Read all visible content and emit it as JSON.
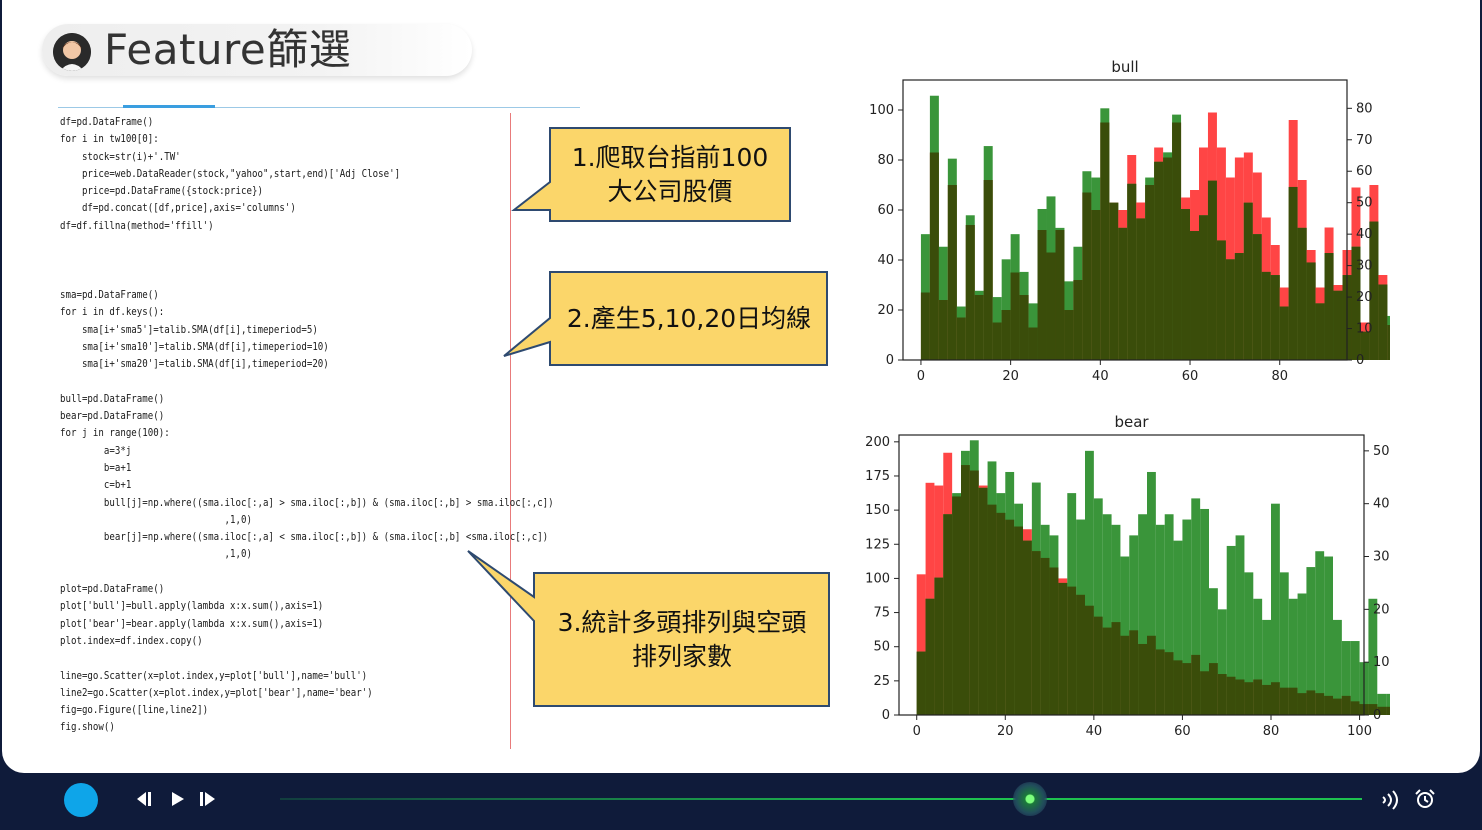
{
  "title": "Feature篩選",
  "code_lines": [
    "df=pd.DataFrame()",
    "for i in tw100[0]:",
    "    stock=str(i)+'.TW'",
    "    price=web.DataReader(stock,\"yahoo\",start,end)['Adj Close']",
    "    price=pd.DataFrame({stock:price})",
    "    df=pd.concat([df,price],axis='columns')",
    "df=df.fillna(method='ffill')",
    "",
    "",
    "",
    "sma=pd.DataFrame()",
    "for i in df.keys():",
    "    sma[i+'sma5']=talib.SMA(df[i],timeperiod=5)",
    "    sma[i+'sma10']=talib.SMA(df[i],timeperiod=10)",
    "    sma[i+'sma20']=talib.SMA(df[i],timeperiod=20)",
    "",
    "bull=pd.DataFrame()",
    "bear=pd.DataFrame()",
    "for j in range(100):",
    "        a=3*j",
    "        b=a+1",
    "        c=b+1",
    "        bull[j]=np.where((sma.iloc[:,a] > sma.iloc[:,b]) & (sma.iloc[:,b] > sma.iloc[:,c])",
    "                              ,1,0)",
    "        bear[j]=np.where((sma.iloc[:,a] < sma.iloc[:,b]) & (sma.iloc[:,b] <sma.iloc[:,c])",
    "                              ,1,0)",
    "",
    "plot=pd.DataFrame()",
    "plot['bull']=bull.apply(lambda x:x.sum(),axis=1)",
    "plot['bear']=bear.apply(lambda x:x.sum(),axis=1)",
    "plot.index=df.index.copy()",
    "",
    "line=go.Scatter(x=plot.index,y=plot['bull'],name='bull')",
    "line2=go.Scatter(x=plot.index,y=plot['bear'],name='bear')",
    "fig=go.Figure([line,line2])",
    "fig.show()"
  ],
  "callouts": [
    {
      "line1": "1.爬取台指前100",
      "line2": "大公司股價"
    },
    {
      "line1": "2.產生5,10,20日均線"
    },
    {
      "line1": "3.統計多頭排列與空頭",
      "line2": "排列家數"
    }
  ],
  "colors": {
    "red": "#ff3b3b",
    "green": "#2f8f2f",
    "overlap": "#3a4d0a",
    "callout_fill": "#fbd66a",
    "callout_border": "#2e4a70",
    "player_bg": "#0f1b3a"
  },
  "chart_data": [
    {
      "type": "bar",
      "title": "bull",
      "x_ticks": [
        "0",
        "20",
        "40",
        "60",
        "80"
      ],
      "xlim": [
        -4,
        95
      ],
      "bin_start": 0,
      "bin_width": 2,
      "left_axis_ticks": [
        "0",
        "20",
        "40",
        "60",
        "80",
        "100"
      ],
      "left_ylim": [
        0,
        112
      ],
      "right_axis_ticks": [
        "0",
        "10",
        "20",
        "30",
        "40",
        "50",
        "60",
        "70",
        "80"
      ],
      "right_ylim": [
        0,
        89
      ],
      "series": [
        {
          "name": "",
          "color": "red",
          "axis": "left",
          "values": [
            27,
            83,
            24,
            70,
            17,
            54,
            26,
            72,
            15,
            20,
            35,
            26,
            13,
            52,
            43,
            52,
            20,
            32,
            67,
            60,
            95,
            63,
            60,
            82,
            63,
            70,
            85,
            81,
            95,
            65,
            68,
            85,
            99,
            85,
            73,
            81,
            83,
            75,
            57,
            46,
            29,
            96,
            72,
            44,
            29,
            53,
            30,
            44,
            69,
            15,
            70,
            34,
            14,
            13,
            46,
            57,
            45,
            48,
            33,
            48,
            38,
            11,
            18,
            10,
            10,
            14,
            48,
            23,
            18,
            8,
            42,
            12,
            15,
            10,
            11,
            15,
            28,
            21,
            5,
            8,
            7,
            2,
            6,
            4,
            9,
            3,
            7,
            1,
            6,
            5
          ]
        },
        {
          "name": "",
          "color": "green",
          "axis": "right",
          "values": [
            40,
            84,
            36,
            64,
            17,
            46,
            22,
            68,
            20,
            32,
            40,
            28,
            18,
            48,
            52,
            42,
            25,
            36,
            60,
            58,
            80,
            50,
            42,
            56,
            45,
            58,
            63,
            66,
            78,
            48,
            41,
            46,
            57,
            38,
            32,
            34,
            50,
            40,
            28,
            27,
            17,
            55,
            42,
            31,
            18,
            34,
            22,
            27,
            36,
            9,
            44,
            24,
            14,
            9,
            24,
            36,
            27,
            20,
            15,
            28,
            19,
            7,
            9,
            5,
            5,
            7,
            20,
            13,
            10,
            4,
            21,
            6,
            5,
            4,
            4,
            6,
            14,
            11,
            2,
            3,
            3,
            1,
            2,
            1,
            3,
            1,
            2,
            0,
            2,
            1
          ]
        }
      ]
    },
    {
      "type": "bar",
      "title": "bear",
      "x_ticks": [
        "0",
        "20",
        "40",
        "60",
        "80",
        "100"
      ],
      "xlim": [
        -4,
        101
      ],
      "bin_start": 0,
      "bin_width": 2,
      "left_axis_ticks": [
        "0",
        "25",
        "50",
        "75",
        "100",
        "125",
        "150",
        "175",
        "200"
      ],
      "left_ylim": [
        0,
        205
      ],
      "right_axis_ticks": [
        "0",
        "10",
        "20",
        "30",
        "40",
        "50"
      ],
      "right_ylim": [
        0,
        53
      ],
      "series": [
        {
          "name": "",
          "color": "red",
          "axis": "left",
          "values": [
            103,
            170,
            168,
            192,
            160,
            183,
            179,
            168,
            154,
            148,
            143,
            138,
            136,
            120,
            115,
            108,
            100,
            94,
            88,
            80,
            72,
            64,
            68,
            58,
            62,
            52,
            58,
            48,
            46,
            40,
            38,
            44,
            32,
            38,
            30,
            28,
            26,
            24,
            26,
            22,
            24,
            20,
            20,
            16,
            18,
            16,
            14,
            12,
            14,
            10,
            8,
            8,
            6,
            6,
            4,
            4,
            6,
            3,
            4,
            2,
            3,
            2,
            4,
            2,
            1,
            2,
            2,
            1,
            1,
            2,
            1,
            1,
            2,
            1,
            1,
            0,
            1,
            0,
            0,
            1
          ]
        },
        {
          "name": "",
          "color": "green",
          "axis": "right",
          "values": [
            12,
            22,
            26,
            38,
            42,
            50,
            52,
            43,
            48,
            42,
            46,
            40,
            33,
            44,
            36,
            34,
            25,
            42,
            37,
            50,
            41,
            38,
            36,
            30,
            34,
            38,
            46,
            36,
            38,
            33,
            37,
            41,
            39,
            24,
            20,
            32,
            34,
            27,
            22,
            18,
            40,
            27,
            22,
            23,
            28,
            31,
            30,
            18,
            14,
            14,
            10,
            22,
            4,
            4,
            5,
            4,
            4,
            4,
            2,
            2,
            2,
            0,
            0,
            3,
            0,
            1
          ]
        }
      ]
    }
  ]
}
